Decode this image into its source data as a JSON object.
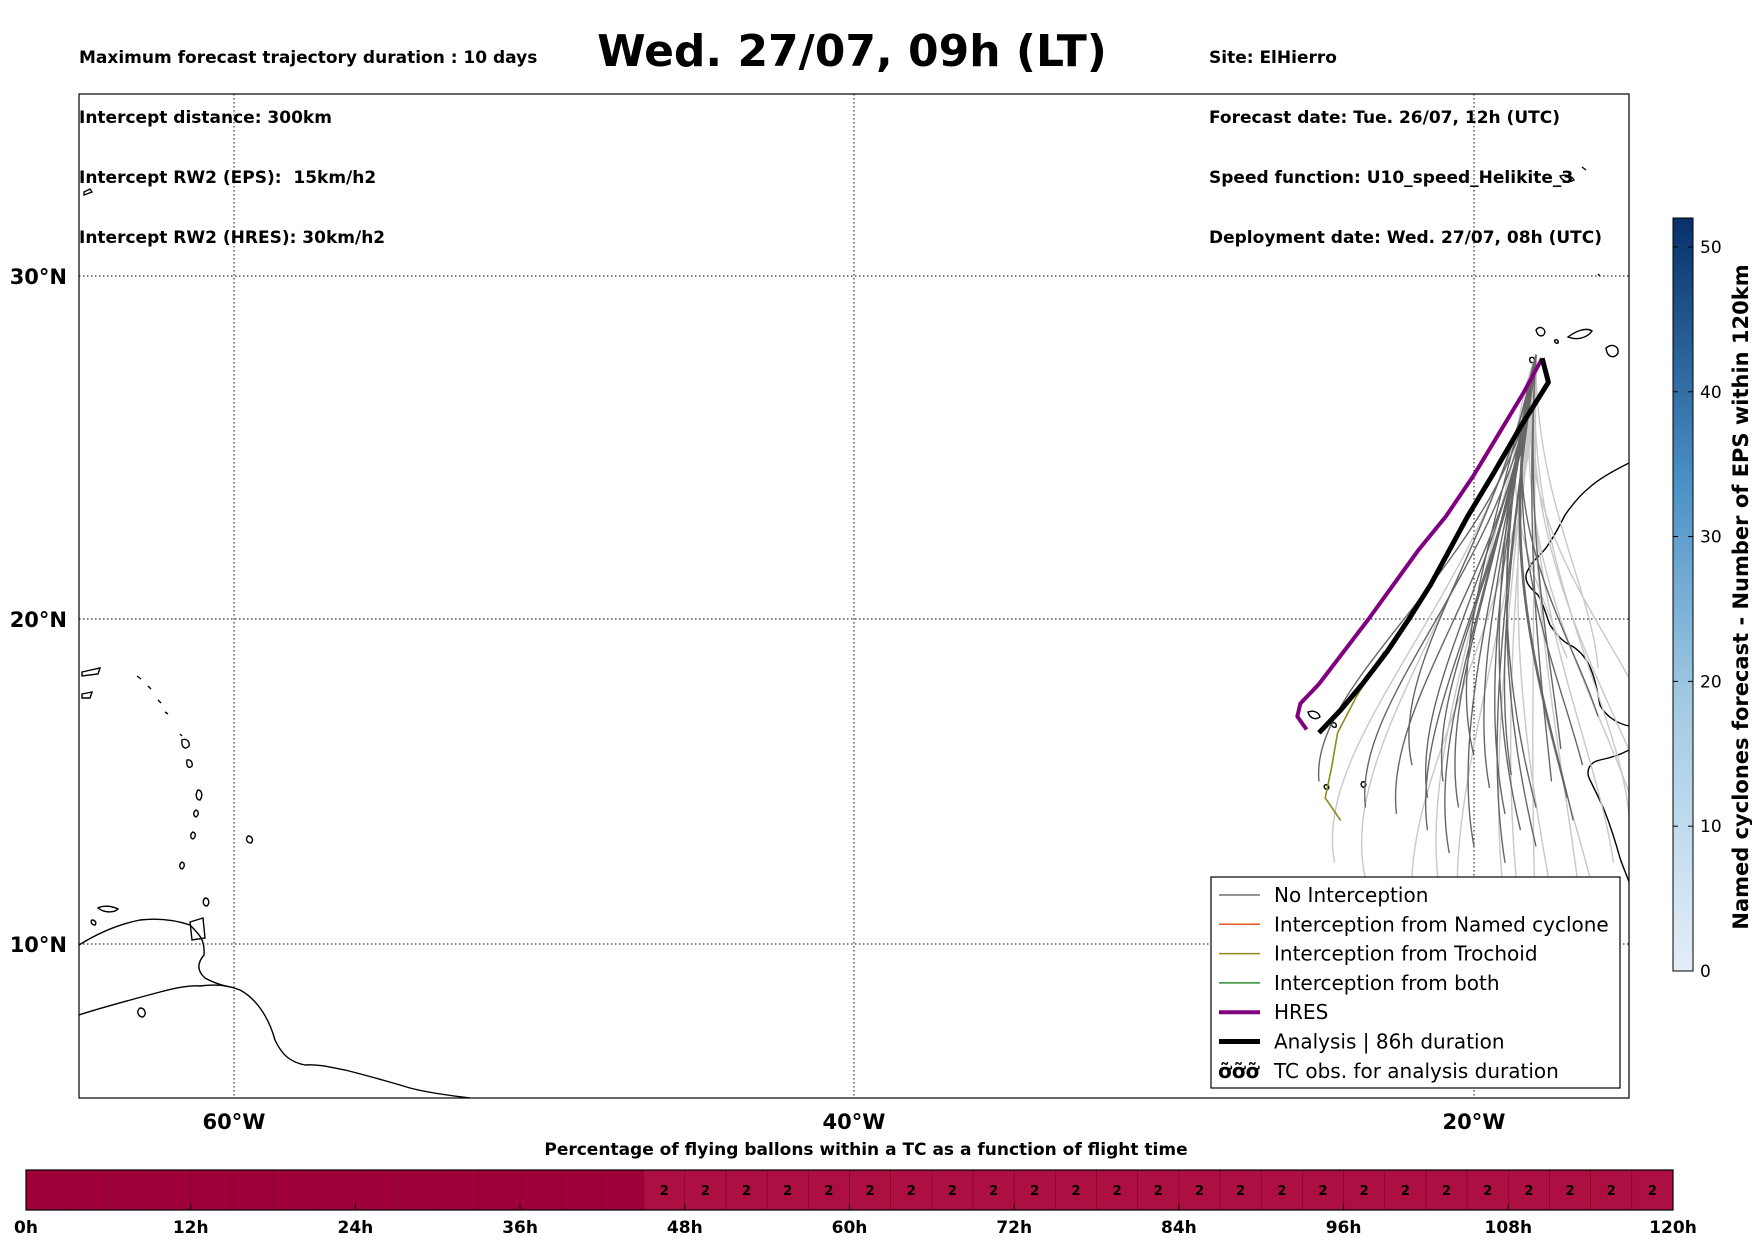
{
  "header": {
    "left": [
      "Maximum forecast trajectory duration : 10 days",
      "Intercept distance: 300km",
      "Intercept RW2 (EPS):  15km/h2",
      "Intercept RW2 (HRES): 30km/h2"
    ],
    "title": "Wed. 27/07, 09h (LT)",
    "right": [
      "Site: ElHierro",
      "Forecast date: Tue. 26/07, 12h (UTC)",
      "Speed function: U10_speed_Helikite_3",
      "Deployment date: Wed. 27/07, 08h (UTC)"
    ]
  },
  "map": {
    "lon_range": [
      -65,
      15
    ],
    "lat_range": [
      5,
      35
    ],
    "visible_lon_range": [
      -65,
      -15
    ],
    "visible_lat_range": [
      5,
      34.3
    ],
    "lat_ticks": [
      {
        "value": 30,
        "label": "30°N"
      },
      {
        "value": 20,
        "label": "20°N"
      },
      {
        "value": 10,
        "label": "10°N"
      }
    ],
    "lon_ticks": [
      {
        "value": -60,
        "label": "60°W"
      },
      {
        "value": -40,
        "label": "40°W"
      },
      {
        "value": -20,
        "label": "20°W"
      }
    ],
    "grid": true,
    "launch_site": {
      "lon": -18.0,
      "lat": 27.7
    }
  },
  "tracks": {
    "hres": [
      [
        -17.8,
        27.6
      ],
      [
        -18.4,
        26.6
      ],
      [
        -19.2,
        25.4
      ],
      [
        -20.0,
        24.2
      ],
      [
        -20.9,
        23.0
      ],
      [
        -21.8,
        22.0
      ],
      [
        -22.6,
        21.0
      ],
      [
        -23.4,
        20.0
      ],
      [
        -24.2,
        19.0
      ],
      [
        -25.0,
        18.0
      ],
      [
        -25.6,
        17.4
      ],
      [
        -25.7,
        17.0
      ],
      [
        -25.4,
        16.6
      ]
    ],
    "analysis": [
      [
        -17.8,
        27.6
      ],
      [
        -17.6,
        26.9
      ],
      [
        -18.5,
        25.6
      ],
      [
        -19.4,
        24.2
      ],
      [
        -20.2,
        23.0
      ],
      [
        -20.8,
        22.0
      ],
      [
        -21.4,
        21.0
      ],
      [
        -22.1,
        20.0
      ],
      [
        -22.8,
        19.0
      ],
      [
        -23.6,
        18.0
      ],
      [
        -24.3,
        17.2
      ],
      [
        -25.0,
        16.5
      ]
    ],
    "eps_no_interception_endpoints": [
      [
        -18.5,
        13.5
      ],
      [
        -17.0,
        14.5
      ],
      [
        -19.0,
        14.0
      ],
      [
        -20.5,
        14.2
      ],
      [
        -21.5,
        14.5
      ],
      [
        -22.5,
        14.0
      ],
      [
        -17.5,
        15.0
      ],
      [
        -18.0,
        13.0
      ],
      [
        -16.5,
        15.5
      ],
      [
        -20.0,
        13.0
      ],
      [
        -19.5,
        14.8
      ],
      [
        -18.8,
        15.2
      ],
      [
        -21.0,
        15.0
      ],
      [
        -17.2,
        16.0
      ],
      [
        -16.0,
        17.0
      ],
      [
        -20.0,
        15.8
      ],
      [
        -22.0,
        15.5
      ],
      [
        -19.0,
        12.5
      ],
      [
        -21.5,
        13.5
      ],
      [
        -23.5,
        14.2
      ],
      [
        -25.0,
        15.0
      ],
      [
        -18.0,
        14.2
      ],
      [
        -16.8,
        13.8
      ],
      [
        -20.8,
        12.8
      ]
    ],
    "eps_far_endpoints": [
      [
        -16.0,
        11.0
      ],
      [
        -17.5,
        11.5
      ],
      [
        -19.0,
        11.2
      ],
      [
        -20.5,
        10.8
      ],
      [
        -22.0,
        11.5
      ],
      [
        -23.5,
        12.0
      ],
      [
        -24.5,
        12.5
      ],
      [
        -15.5,
        12.5
      ],
      [
        -16.5,
        10.5
      ],
      [
        -18.0,
        10.5
      ],
      [
        -21.0,
        11.0
      ],
      [
        -14.5,
        13.0
      ],
      [
        -13.5,
        11.8
      ],
      [
        -15.0,
        14.0
      ],
      [
        -16.0,
        18.5
      ],
      [
        -17.0,
        18.8
      ],
      [
        -14.0,
        16.0
      ],
      [
        -18.5,
        10.8
      ]
    ],
    "eps_trochoid": [
      [
        -22.9,
        19.0
      ],
      [
        -23.8,
        17.6
      ],
      [
        -24.4,
        16.5
      ],
      [
        -24.6,
        15.4
      ],
      [
        -24.8,
        14.5
      ],
      [
        -24.3,
        13.8
      ]
    ]
  },
  "legend": {
    "entries": [
      {
        "label": "No Interception",
        "color": "#707070",
        "width": 1.5
      },
      {
        "label": "Interception from Named cyclone",
        "color": "#e8581f",
        "width": 1.5
      },
      {
        "label": "Interception from Trochoid",
        "color": "#8a8a1e",
        "width": 1.5
      },
      {
        "label": "Interception from both",
        "color": "#2e8b2e",
        "width": 1.5
      },
      {
        "label": "HRES",
        "color": "#800080",
        "width": 4
      },
      {
        "label": "Analysis | 86h duration",
        "color": "#000000",
        "width": 5
      },
      {
        "label": "TC obs. for analysis duration",
        "color": "#000000",
        "width": 0,
        "symbol": "ỡỡỡ"
      }
    ],
    "placement": "lower-right"
  },
  "colorbar": {
    "label": "Named cyclones forecast - Number of EPS within 120km",
    "min": 0,
    "max": 52,
    "ticks": [
      0,
      10,
      20,
      30,
      40,
      50
    ],
    "color_low": "#e3eef8",
    "color_high": "#08306b"
  },
  "flight_bar": {
    "title": "Percentage of flying ballons within a TC as a function of flight time",
    "hours_max": 120,
    "cell_hours": 3,
    "dark_color": "#a0003a",
    "light_color": "#ad0f42",
    "values": [
      0,
      0,
      0,
      0,
      0,
      0,
      0,
      0,
      0,
      0,
      0,
      0,
      0,
      0,
      0,
      2,
      2,
      2,
      2,
      2,
      2,
      2,
      2,
      2,
      2,
      2,
      2,
      2,
      2,
      2,
      2,
      2,
      2,
      2,
      2,
      2,
      2,
      2,
      2,
      2
    ],
    "ticks": [
      {
        "hour": 0,
        "label": "0h"
      },
      {
        "hour": 12,
        "label": "12h"
      },
      {
        "hour": 24,
        "label": "24h"
      },
      {
        "hour": 36,
        "label": "36h"
      },
      {
        "hour": 48,
        "label": "48h"
      },
      {
        "hour": 60,
        "label": "60h"
      },
      {
        "hour": 72,
        "label": "72h"
      },
      {
        "hour": 84,
        "label": "84h"
      },
      {
        "hour": 96,
        "label": "96h"
      },
      {
        "hour": 108,
        "label": "108h"
      },
      {
        "hour": 120,
        "label": "120h"
      }
    ]
  }
}
